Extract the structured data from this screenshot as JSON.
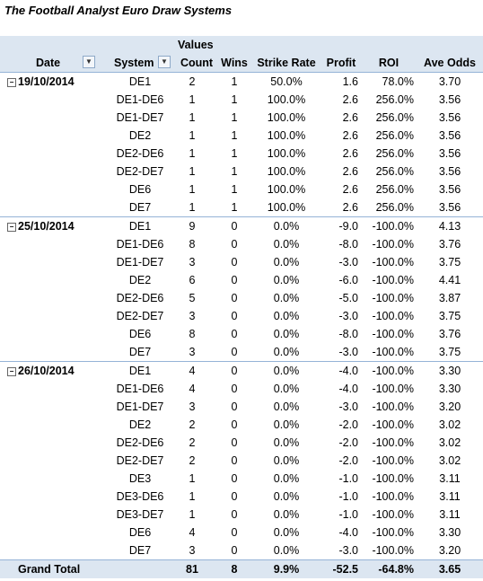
{
  "title": "The Football Analyst Euro Draw Systems",
  "header": {
    "values_label": "Values",
    "date_label": "Date",
    "system_label": "System",
    "count_label": "Count",
    "wins_label": "Wins",
    "strike_rate_label": "Strike Rate",
    "profit_label": "Profit",
    "roi_label": "ROI",
    "ave_odds_label": "Ave Odds"
  },
  "groups": [
    {
      "date": "19/10/2014",
      "rows": [
        {
          "system": "DE1",
          "count": "2",
          "wins": "1",
          "strike_rate": "50.0%",
          "profit": "1.6",
          "roi": "78.0%",
          "ave_odds": "3.70"
        },
        {
          "system": "DE1-DE6",
          "count": "1",
          "wins": "1",
          "strike_rate": "100.0%",
          "profit": "2.6",
          "roi": "256.0%",
          "ave_odds": "3.56"
        },
        {
          "system": "DE1-DE7",
          "count": "1",
          "wins": "1",
          "strike_rate": "100.0%",
          "profit": "2.6",
          "roi": "256.0%",
          "ave_odds": "3.56"
        },
        {
          "system": "DE2",
          "count": "1",
          "wins": "1",
          "strike_rate": "100.0%",
          "profit": "2.6",
          "roi": "256.0%",
          "ave_odds": "3.56"
        },
        {
          "system": "DE2-DE6",
          "count": "1",
          "wins": "1",
          "strike_rate": "100.0%",
          "profit": "2.6",
          "roi": "256.0%",
          "ave_odds": "3.56"
        },
        {
          "system": "DE2-DE7",
          "count": "1",
          "wins": "1",
          "strike_rate": "100.0%",
          "profit": "2.6",
          "roi": "256.0%",
          "ave_odds": "3.56"
        },
        {
          "system": "DE6",
          "count": "1",
          "wins": "1",
          "strike_rate": "100.0%",
          "profit": "2.6",
          "roi": "256.0%",
          "ave_odds": "3.56"
        },
        {
          "system": "DE7",
          "count": "1",
          "wins": "1",
          "strike_rate": "100.0%",
          "profit": "2.6",
          "roi": "256.0%",
          "ave_odds": "3.56"
        }
      ]
    },
    {
      "date": "25/10/2014",
      "rows": [
        {
          "system": "DE1",
          "count": "9",
          "wins": "0",
          "strike_rate": "0.0%",
          "profit": "-9.0",
          "roi": "-100.0%",
          "ave_odds": "4.13"
        },
        {
          "system": "DE1-DE6",
          "count": "8",
          "wins": "0",
          "strike_rate": "0.0%",
          "profit": "-8.0",
          "roi": "-100.0%",
          "ave_odds": "3.76"
        },
        {
          "system": "DE1-DE7",
          "count": "3",
          "wins": "0",
          "strike_rate": "0.0%",
          "profit": "-3.0",
          "roi": "-100.0%",
          "ave_odds": "3.75"
        },
        {
          "system": "DE2",
          "count": "6",
          "wins": "0",
          "strike_rate": "0.0%",
          "profit": "-6.0",
          "roi": "-100.0%",
          "ave_odds": "4.41"
        },
        {
          "system": "DE2-DE6",
          "count": "5",
          "wins": "0",
          "strike_rate": "0.0%",
          "profit": "-5.0",
          "roi": "-100.0%",
          "ave_odds": "3.87"
        },
        {
          "system": "DE2-DE7",
          "count": "3",
          "wins": "0",
          "strike_rate": "0.0%",
          "profit": "-3.0",
          "roi": "-100.0%",
          "ave_odds": "3.75"
        },
        {
          "system": "DE6",
          "count": "8",
          "wins": "0",
          "strike_rate": "0.0%",
          "profit": "-8.0",
          "roi": "-100.0%",
          "ave_odds": "3.76"
        },
        {
          "system": "DE7",
          "count": "3",
          "wins": "0",
          "strike_rate": "0.0%",
          "profit": "-3.0",
          "roi": "-100.0%",
          "ave_odds": "3.75"
        }
      ]
    },
    {
      "date": "26/10/2014",
      "rows": [
        {
          "system": "DE1",
          "count": "4",
          "wins": "0",
          "strike_rate": "0.0%",
          "profit": "-4.0",
          "roi": "-100.0%",
          "ave_odds": "3.30"
        },
        {
          "system": "DE1-DE6",
          "count": "4",
          "wins": "0",
          "strike_rate": "0.0%",
          "profit": "-4.0",
          "roi": "-100.0%",
          "ave_odds": "3.30"
        },
        {
          "system": "DE1-DE7",
          "count": "3",
          "wins": "0",
          "strike_rate": "0.0%",
          "profit": "-3.0",
          "roi": "-100.0%",
          "ave_odds": "3.20"
        },
        {
          "system": "DE2",
          "count": "2",
          "wins": "0",
          "strike_rate": "0.0%",
          "profit": "-2.0",
          "roi": "-100.0%",
          "ave_odds": "3.02"
        },
        {
          "system": "DE2-DE6",
          "count": "2",
          "wins": "0",
          "strike_rate": "0.0%",
          "profit": "-2.0",
          "roi": "-100.0%",
          "ave_odds": "3.02"
        },
        {
          "system": "DE2-DE7",
          "count": "2",
          "wins": "0",
          "strike_rate": "0.0%",
          "profit": "-2.0",
          "roi": "-100.0%",
          "ave_odds": "3.02"
        },
        {
          "system": "DE3",
          "count": "1",
          "wins": "0",
          "strike_rate": "0.0%",
          "profit": "-1.0",
          "roi": "-100.0%",
          "ave_odds": "3.11"
        },
        {
          "system": "DE3-DE6",
          "count": "1",
          "wins": "0",
          "strike_rate": "0.0%",
          "profit": "-1.0",
          "roi": "-100.0%",
          "ave_odds": "3.11"
        },
        {
          "system": "DE3-DE7",
          "count": "1",
          "wins": "0",
          "strike_rate": "0.0%",
          "profit": "-1.0",
          "roi": "-100.0%",
          "ave_odds": "3.11"
        },
        {
          "system": "DE6",
          "count": "4",
          "wins": "0",
          "strike_rate": "0.0%",
          "profit": "-4.0",
          "roi": "-100.0%",
          "ave_odds": "3.30"
        },
        {
          "system": "DE7",
          "count": "3",
          "wins": "0",
          "strike_rate": "0.0%",
          "profit": "-3.0",
          "roi": "-100.0%",
          "ave_odds": "3.20"
        }
      ]
    }
  ],
  "grand_total": {
    "label": "Grand Total",
    "count": "81",
    "wins": "8",
    "strike_rate": "9.9%",
    "profit": "-52.5",
    "roi": "-64.8%",
    "ave_odds": "3.65"
  },
  "icons": {
    "date_filter": "filter-dropdown-icon",
    "system_dropdown": "chevron-down-icon",
    "collapse": "collapse-minus-icon"
  },
  "colors": {
    "header_bg": "#dce6f1",
    "border": "#95b3d7"
  }
}
